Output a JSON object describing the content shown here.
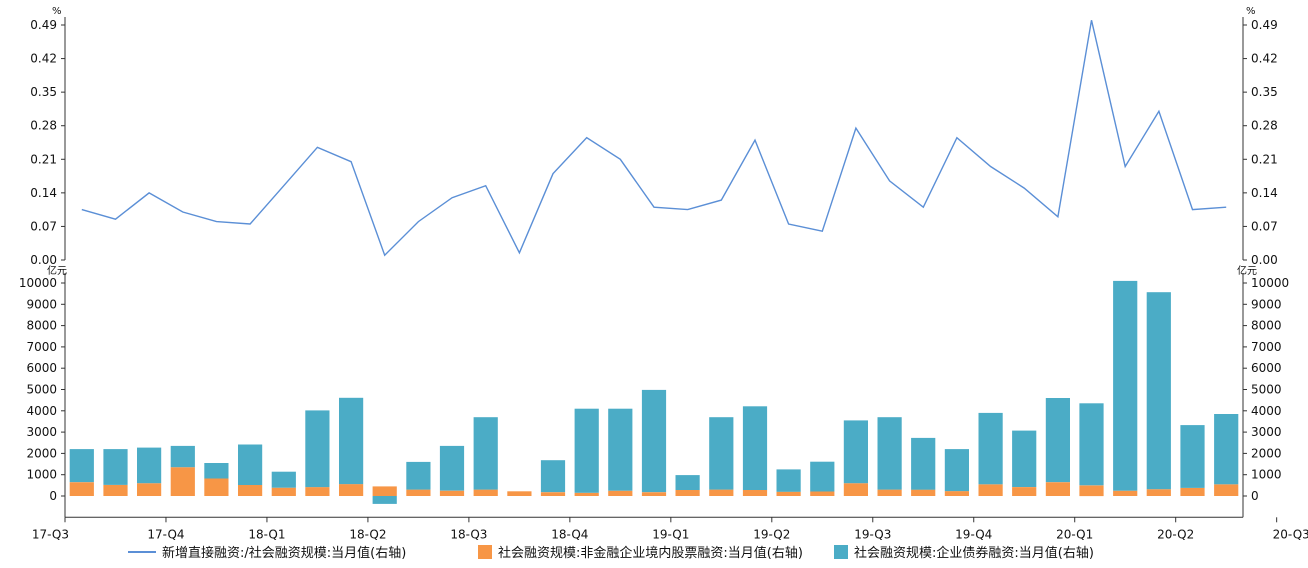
{
  "colors": {
    "line": "#5b8fd6",
    "equity": "#f79646",
    "bond": "#4bacc6",
    "axis": "#333333"
  },
  "legend": {
    "line_label": "新增直接融资:/社会融资规模:当月值(右轴)",
    "equity_label": "社会融资规模:非金融企业境内股票融资:当月值(右轴)",
    "bond_label": "社会融资规模:企业债券融资:当月值(右轴)"
  },
  "chart_data": [
    {
      "type": "line",
      "unit": "%",
      "ylim": [
        0,
        0.49
      ],
      "yticks": [
        "0.00",
        "0.07",
        "0.14",
        "0.21",
        "0.28",
        "0.35",
        "0.42",
        "0.49"
      ],
      "series": [
        {
          "name": "新增直接融资:/社会融资规模:当月值(右轴)",
          "values": [
            0.105,
            0.085,
            0.14,
            0.1,
            0.08,
            0.075,
            0.155,
            0.235,
            0.205,
            0.01,
            0.08,
            0.13,
            0.155,
            0.015,
            0.18,
            0.255,
            0.21,
            0.11,
            0.105,
            0.125,
            0.25,
            0.075,
            0.06,
            0.275,
            0.165,
            0.11,
            0.255,
            0.195,
            0.15,
            0.09,
            0.5,
            0.195,
            0.31,
            0.105,
            0.11
          ]
        }
      ]
    },
    {
      "type": "bar",
      "stacked": true,
      "unit": "亿元",
      "ylim": [
        -1000,
        10000
      ],
      "yticks": [
        "0",
        "1000",
        "2000",
        "3000",
        "4000",
        "5000",
        "6000",
        "7000",
        "8000",
        "9000",
        "10000"
      ],
      "x_quarter_labels": [
        "17-Q3",
        "17-Q4",
        "18-Q1",
        "18-Q2",
        "18-Q3",
        "18-Q4",
        "19-Q1",
        "19-Q2",
        "19-Q3",
        "19-Q4",
        "20-Q1",
        "20-Q2",
        "20-Q3"
      ],
      "series": [
        {
          "name": "社会融资规模:非金融企业境内股票融资:当月值(右轴)",
          "values": [
            650,
            520,
            600,
            1350,
            820,
            520,
            390,
            420,
            560,
            450,
            300,
            250,
            300,
            220,
            180,
            150,
            250,
            180,
            280,
            300,
            280,
            200,
            210,
            600,
            300,
            300,
            230,
            550,
            420,
            650,
            500,
            250,
            320,
            380,
            550
          ]
        },
        {
          "name": "社会融资规模:企业债券融资:当月值(右轴)",
          "values": [
            1550,
            1680,
            1670,
            1000,
            730,
            1900,
            750,
            3600,
            4050,
            -370,
            1300,
            2100,
            3400,
            0,
            1500,
            3950,
            3850,
            4800,
            700,
            3400,
            3930,
            1050,
            1400,
            2950,
            3400,
            2430,
            1970,
            3350,
            2650,
            3950,
            3850,
            9850,
            9250,
            2950,
            3300
          ]
        }
      ]
    }
  ]
}
